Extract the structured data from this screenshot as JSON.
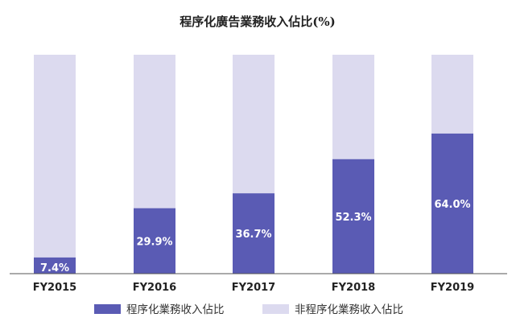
{
  "chart_data": {
    "type": "bar",
    "stacked": true,
    "title": "程序化廣告業務收入佔比(%)",
    "categories": [
      "FY2015",
      "FY2016",
      "FY2017",
      "FY2018",
      "FY2019"
    ],
    "series": [
      {
        "name": "程序化業務收入佔比",
        "values": [
          7.4,
          29.9,
          36.7,
          52.3,
          64.0
        ],
        "labels": [
          "7.4%",
          "29.9%",
          "36.7%",
          "52.3%",
          "64.0%"
        ],
        "color": "#5a5bb4"
      },
      {
        "name": "非程序化業務收入佔比",
        "values": [
          92.6,
          70.1,
          63.3,
          47.7,
          36.0
        ],
        "color": "#dcdaef"
      }
    ],
    "ylim": [
      0,
      100
    ],
    "grid": false,
    "legend": "bottom"
  },
  "colors": {
    "axis": "#555555"
  }
}
